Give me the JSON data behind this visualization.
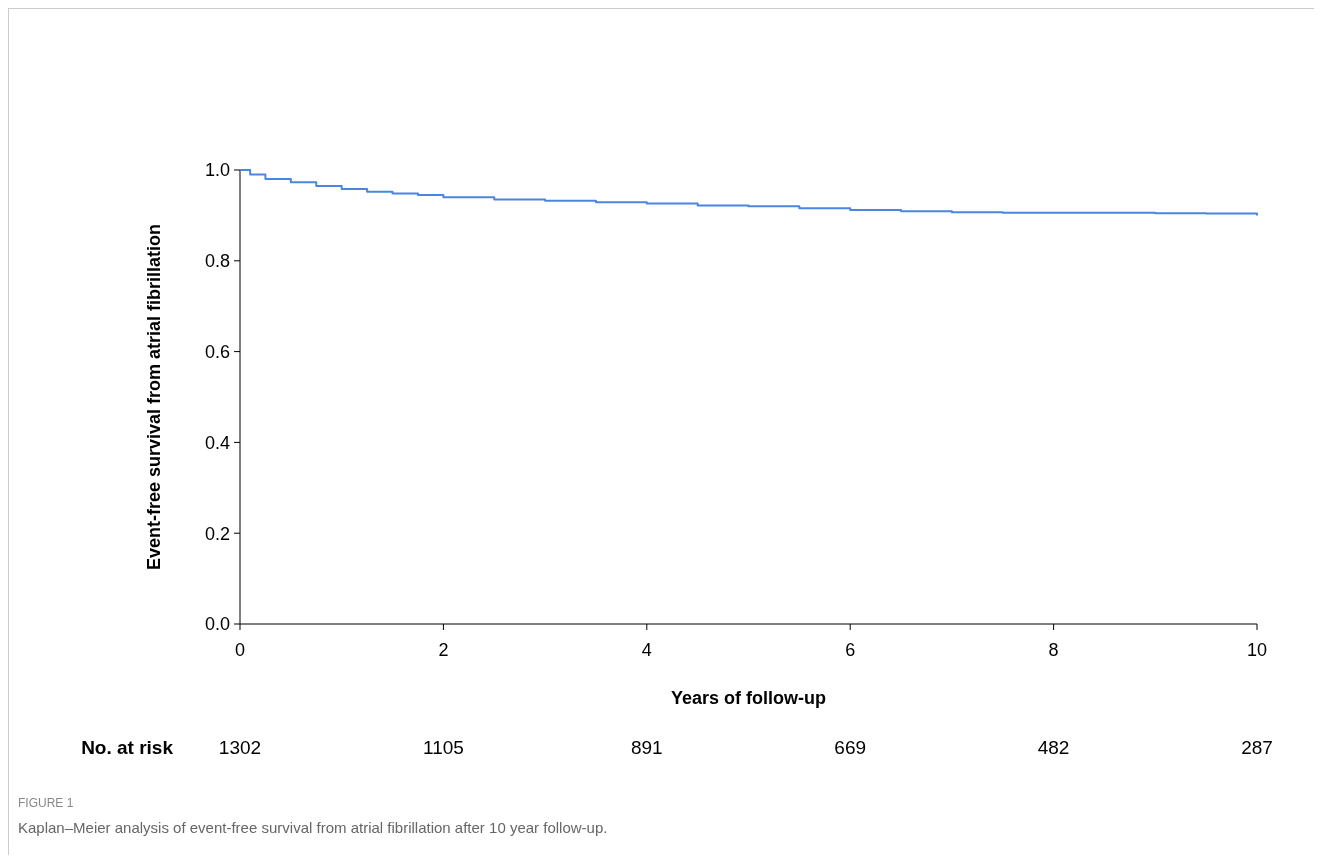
{
  "chart_data": {
    "type": "step",
    "xlabel": "Years of follow-up",
    "ylabel": "Event-free survival from atrial fibrillation",
    "x": [
      0,
      0.1,
      0.25,
      0.5,
      0.75,
      1,
      1.25,
      1.5,
      1.75,
      2,
      2.5,
      3,
      3.5,
      4,
      4.5,
      5,
      5.5,
      6,
      6.5,
      7,
      7.5,
      8,
      8.5,
      9,
      9.5,
      10
    ],
    "series": [
      {
        "color": "#4a86e0",
        "values": [
          1.0,
          0.99,
          0.98,
          0.973,
          0.965,
          0.958,
          0.952,
          0.948,
          0.945,
          0.94,
          0.935,
          0.932,
          0.929,
          0.926,
          0.922,
          0.92,
          0.916,
          0.912,
          0.909,
          0.907,
          0.906,
          0.906,
          0.906,
          0.905,
          0.904,
          0.9
        ]
      }
    ],
    "xlim": [
      0,
      10
    ],
    "xticks": [
      0,
      2,
      4,
      6,
      8,
      10
    ],
    "ylim": [
      0,
      1
    ],
    "yticks": [
      {
        "value": 0,
        "label": "0.0"
      },
      {
        "value": 0.2,
        "label": "0.2"
      },
      {
        "value": 0.4,
        "label": "0.4"
      },
      {
        "value": 0.6,
        "label": "0.6"
      },
      {
        "value": 0.8,
        "label": "0.8"
      },
      {
        "value": 1,
        "label": "1.0"
      }
    ],
    "grid": false,
    "line_style": "solid",
    "annotations": [
      "No. at risk",
      "1302",
      "1105",
      "891",
      "669",
      "482",
      "287",
      "FIGURE 1",
      "Kaplan–Meier analysis of event-free survival from atrial fibrillation after 10 year follow-up."
    ]
  }
}
